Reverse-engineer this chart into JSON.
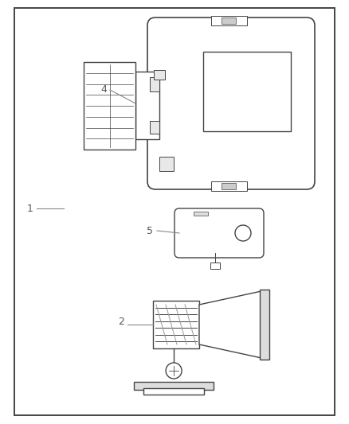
{
  "bg_color": "#ffffff",
  "border_color": "#222222",
  "line_color": "#444444",
  "fig_width": 4.38,
  "fig_height": 5.33,
  "dpi": 100
}
